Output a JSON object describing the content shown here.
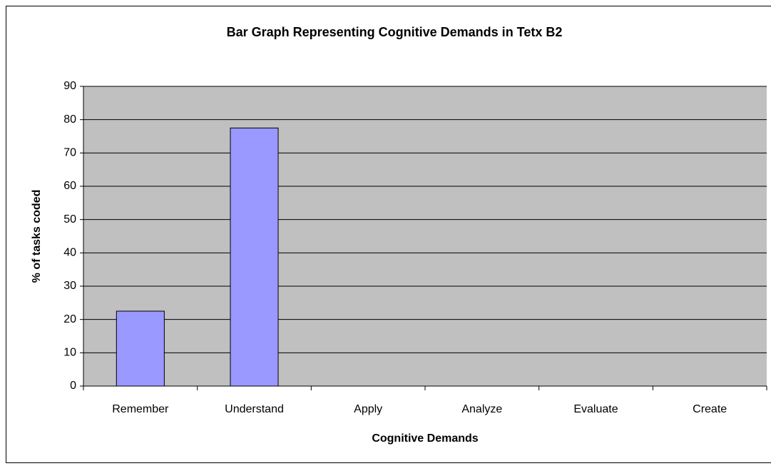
{
  "chart_data": {
    "type": "bar",
    "title": "Bar Graph Representing Cognitive Demands in Tetx B2",
    "x_label": "Cognitive Demands",
    "y_label": "% of tasks coded",
    "categories": [
      "Remember",
      "Understand",
      "Apply",
      "Analyze",
      "Evaluate",
      "Create"
    ],
    "values": [
      22.5,
      77.5,
      0,
      0,
      0,
      0
    ],
    "color": "#9999ff",
    "ylim": [
      0,
      90
    ],
    "yticks": [
      0,
      10,
      20,
      30,
      40,
      50,
      60,
      70,
      80,
      90
    ],
    "grid": true
  }
}
